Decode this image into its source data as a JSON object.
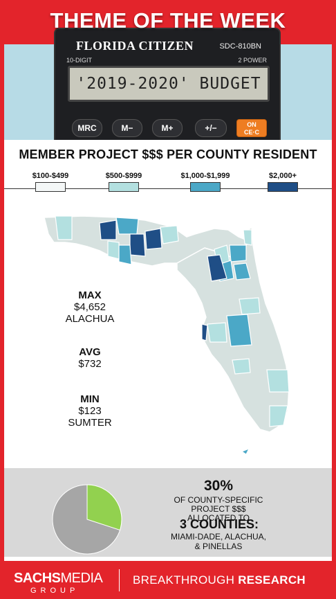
{
  "header": {
    "title": "THEME OF THE WEEK"
  },
  "calculator": {
    "brand": "FLORIDA CITIZEN",
    "model": "SDC-810BN",
    "digit_label": "10-DIGIT",
    "power_label": "2 POWER",
    "display": "'2019-2020' BUDGET",
    "keys": [
      "MRC",
      "M−",
      "M+",
      "+/−"
    ],
    "on_key_top": "ON",
    "on_key_bottom": "CE·C"
  },
  "subtitle": "MEMBER PROJECT $$$ PER COUNTY RESIDENT",
  "legend": [
    {
      "label": "$100-$499",
      "color": "#f4f7f7"
    },
    {
      "label": "$500-$999",
      "color": "#b3e0e0"
    },
    {
      "label": "$1,000-$1,999",
      "color": "#4ba8c7"
    },
    {
      "label": "$2,000+",
      "color": "#1f4e86"
    }
  ],
  "colors": {
    "accent_red": "#e3242b",
    "map_base": "#d6e1df",
    "pie_green": "#92d14f",
    "pie_gray": "#a6a6a6"
  },
  "stats": {
    "max": {
      "label": "MAX",
      "value": "$4,652",
      "county": "ALACHUA"
    },
    "avg": {
      "label": "AVG",
      "value": "$732"
    },
    "min": {
      "label": "MIN",
      "value": "$123",
      "county": "SUMTER"
    }
  },
  "pie": {
    "percent_text": "30%",
    "share": 0.3,
    "line1": "OF COUNTY-SPECIFIC",
    "line2": "PROJECT $$$ ALLOCATED TO",
    "big": "3 COUNTIES:",
    "counties_line1": "MIAMI-DADE, ALACHUA,",
    "counties_line2": "& PINELLAS"
  },
  "footer": {
    "brand_bold": "SACHS",
    "brand_rest": "MEDIA",
    "group": "GROUP",
    "tag_light": "BREAKTHROUGH ",
    "tag_bold": "RESEARCH"
  }
}
